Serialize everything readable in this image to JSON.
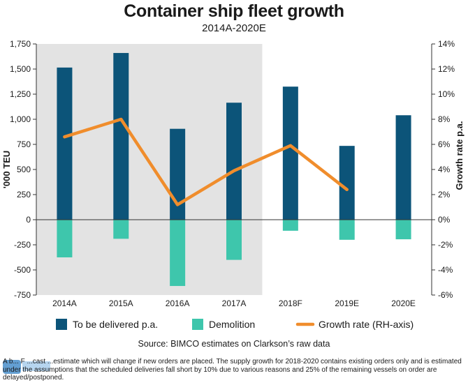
{
  "title": "Container ship fleet growth",
  "subtitle": "2014A-2020E",
  "source": "Source: BIMCO estimates on Clarkson’s raw data",
  "footnote": "A b... F ...cast ...estimate which will change if new orders are placed. The supply growth for 2018-2020 contains existing orders only and is estimated under the assumptions that the scheduled deliveries fall short by 10% due to various reasons and 25% of the remaining vessels on order are delayed/postponed.",
  "logo": {
    "text": "XINDE MARINE NEWS"
  },
  "colors": {
    "delivered": "#0c5479",
    "demolition": "#3ec6ac",
    "growth": "#f08d2c",
    "shaded_area": "#e3e3e3"
  },
  "chart_data": {
    "type": "bar",
    "title": "Container ship fleet growth",
    "subtitle": "2014A-2020E",
    "categories": [
      "2014A",
      "2015A",
      "2016A",
      "2017A",
      "2018F",
      "2019E",
      "2020E"
    ],
    "series": [
      {
        "name": "To be delivered p.a.",
        "type": "bar",
        "axis": "left",
        "values": [
          1515,
          1660,
          905,
          1165,
          1325,
          735,
          1040
        ]
      },
      {
        "name": "Demolition",
        "type": "bar",
        "axis": "left",
        "values": [
          -375,
          -190,
          -660,
          -400,
          -110,
          -200,
          -195
        ]
      },
      {
        "name": "Growth rate (RH-axis)",
        "type": "line",
        "axis": "right",
        "values": [
          6.6,
          8.0,
          1.2,
          3.9,
          5.9,
          2.4,
          null
        ]
      }
    ],
    "ylabel": "'000 TEU",
    "y2label": "Growth rate p.a.",
    "ylim": [
      -750,
      1750
    ],
    "y2lim": [
      -6,
      14
    ],
    "yticks": [
      "1,750",
      "1,500",
      "1,250",
      "1,000",
      "750",
      "500",
      "250",
      "0",
      "-250",
      "-500",
      "-750"
    ],
    "y2ticks": [
      "14%",
      "12%",
      "10%",
      "8%",
      "6%",
      "4%",
      "2%",
      "0%",
      "-2%",
      "-4%",
      "-6%"
    ],
    "shaded_categories": [
      "2014A",
      "2015A",
      "2016A",
      "2017A"
    ],
    "legend": {
      "position": "bottom",
      "items": [
        "To be delivered p.a.",
        "Demolition",
        "Growth rate (RH-axis)"
      ]
    },
    "grid": false
  }
}
